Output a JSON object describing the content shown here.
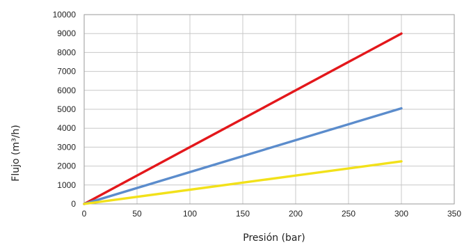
{
  "chart_data": {
    "type": "line",
    "title": "",
    "xlabel": "Presión (bar)",
    "ylabel": "Flujo (m³/h)",
    "xlim": [
      0,
      350
    ],
    "ylim": [
      0,
      10000
    ],
    "xticks": [
      "0",
      "50",
      "100",
      "150",
      "200",
      "250",
      "300",
      "350"
    ],
    "yticks": [
      "0",
      "1000",
      "2000",
      "3000",
      "4000",
      "5000",
      "6000",
      "7000",
      "8000",
      "9000",
      "10000"
    ],
    "grid": true,
    "legend": "none",
    "series": [
      {
        "color": "#e3171b",
        "x": [
          0,
          300
        ],
        "y": [
          0,
          9000
        ]
      },
      {
        "color": "#5b8ccc",
        "x": [
          0,
          300
        ],
        "y": [
          0,
          5050
        ]
      },
      {
        "color": "#f2e11a",
        "x": [
          0,
          300
        ],
        "y": [
          0,
          2250
        ]
      }
    ]
  }
}
